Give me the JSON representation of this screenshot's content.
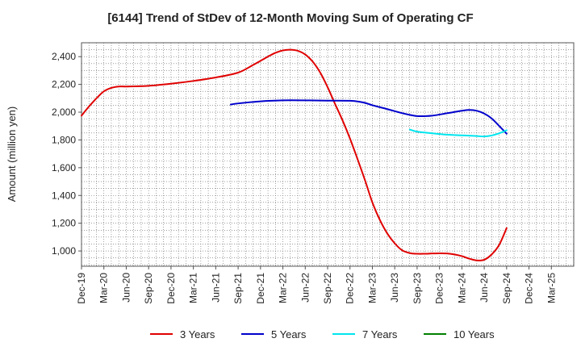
{
  "chart_data": {
    "type": "line",
    "title": "[6144]  Trend of StDev of 12-Month Moving Sum of Operating CF",
    "xlabel": "",
    "ylabel": "Amount (million yen)",
    "ylim": [
      890,
      2500
    ],
    "yticks": [
      1000,
      1200,
      1400,
      1600,
      1800,
      2000,
      2200,
      2400
    ],
    "ytick_labels": [
      "1,000",
      "1,200",
      "1,400",
      "1,600",
      "1,800",
      "2,000",
      "2,200",
      "2,400"
    ],
    "x_categories": [
      "Dec-19",
      "Mar-20",
      "Jun-20",
      "Sep-20",
      "Dec-20",
      "Mar-21",
      "Jun-21",
      "Sep-21",
      "Dec-21",
      "Mar-22",
      "Jun-22",
      "Sep-22",
      "Dec-22",
      "Mar-23",
      "Jun-23",
      "Sep-23",
      "Dec-23",
      "Mar-24",
      "Jun-24",
      "Sep-24",
      "Dec-24",
      "Mar-25"
    ],
    "grid": true,
    "legend_position": "bottom",
    "series": [
      {
        "name": "3 Years",
        "color": "#e00000",
        "points": [
          [
            0,
            1975
          ],
          [
            0.33,
            2040
          ],
          [
            0.67,
            2100
          ],
          [
            1.0,
            2150
          ],
          [
            1.33,
            2175
          ],
          [
            1.67,
            2185
          ],
          [
            2.0,
            2185
          ],
          [
            3.0,
            2190
          ],
          [
            4.0,
            2205
          ],
          [
            5.0,
            2225
          ],
          [
            6.0,
            2250
          ],
          [
            7.0,
            2285
          ],
          [
            7.67,
            2340
          ],
          [
            8.33,
            2400
          ],
          [
            8.67,
            2428
          ],
          [
            9.0,
            2445
          ],
          [
            9.33,
            2450
          ],
          [
            9.67,
            2442
          ],
          [
            10.0,
            2415
          ],
          [
            10.33,
            2365
          ],
          [
            10.67,
            2285
          ],
          [
            11.0,
            2180
          ],
          [
            11.33,
            2060
          ],
          [
            11.67,
            1940
          ],
          [
            12.0,
            1810
          ],
          [
            12.33,
            1665
          ],
          [
            12.67,
            1510
          ],
          [
            13.0,
            1350
          ],
          [
            13.33,
            1225
          ],
          [
            13.67,
            1125
          ],
          [
            14.0,
            1055
          ],
          [
            14.33,
            1005
          ],
          [
            14.67,
            985
          ],
          [
            15.0,
            980
          ],
          [
            15.33,
            980
          ],
          [
            15.67,
            982
          ],
          [
            16.0,
            983
          ],
          [
            16.33,
            982
          ],
          [
            16.67,
            975
          ],
          [
            17.0,
            963
          ],
          [
            17.33,
            945
          ],
          [
            17.67,
            932
          ],
          [
            18.0,
            937
          ],
          [
            18.33,
            975
          ],
          [
            18.67,
            1045
          ],
          [
            19.0,
            1165
          ]
        ]
      },
      {
        "name": "5 Years",
        "color": "#0000cc",
        "points": [
          [
            6.67,
            2055
          ],
          [
            7.0,
            2063
          ],
          [
            8.0,
            2078
          ],
          [
            9.0,
            2085
          ],
          [
            10.0,
            2085
          ],
          [
            11.0,
            2083
          ],
          [
            12.0,
            2082
          ],
          [
            12.33,
            2077
          ],
          [
            12.67,
            2067
          ],
          [
            13.0,
            2050
          ],
          [
            13.67,
            2022
          ],
          [
            14.33,
            1993
          ],
          [
            15.0,
            1972
          ],
          [
            15.67,
            1975
          ],
          [
            16.33,
            1992
          ],
          [
            17.0,
            2010
          ],
          [
            17.33,
            2016
          ],
          [
            17.67,
            2010
          ],
          [
            18.0,
            1990
          ],
          [
            18.33,
            1955
          ],
          [
            18.67,
            1900
          ],
          [
            19.0,
            1845
          ]
        ]
      },
      {
        "name": "7 Years",
        "color": "#00e5ee",
        "points": [
          [
            14.67,
            1875
          ],
          [
            15.0,
            1860
          ],
          [
            15.67,
            1848
          ],
          [
            16.33,
            1838
          ],
          [
            17.0,
            1833
          ],
          [
            17.67,
            1828
          ],
          [
            18.0,
            1825
          ],
          [
            18.33,
            1832
          ],
          [
            18.67,
            1848
          ],
          [
            19.0,
            1870
          ]
        ]
      },
      {
        "name": "10 Years",
        "color": "#008000",
        "points": []
      }
    ]
  }
}
